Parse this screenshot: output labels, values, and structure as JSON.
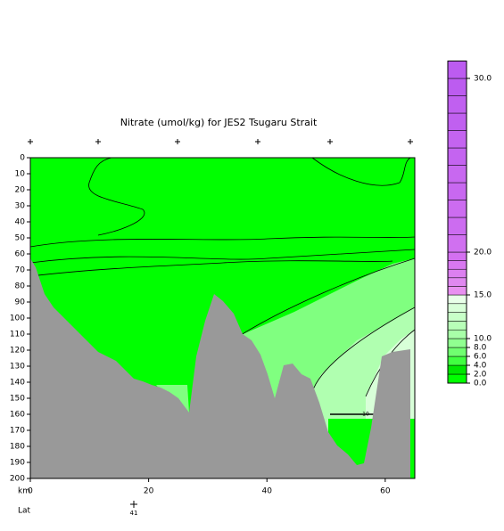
{
  "chart_data": {
    "type": "section",
    "title": "Nitrate (umol/kg) for JES2 Tsugaru Strait",
    "xlabel": "km",
    "lat_label": "Lat",
    "lat_tick": "41",
    "xlim": [
      0,
      65
    ],
    "xticks": [
      0,
      20,
      40,
      60
    ],
    "ylim": [
      0,
      200
    ],
    "yticks": [
      0,
      10,
      20,
      30,
      40,
      50,
      60,
      70,
      80,
      90,
      100,
      110,
      120,
      130,
      140,
      150,
      160,
      170,
      180,
      190,
      200
    ],
    "colorbar": {
      "bounds": [
        0,
        2,
        4,
        6,
        8,
        10,
        11,
        12,
        13,
        14,
        15,
        16,
        17,
        18,
        19,
        20,
        21,
        22,
        23,
        24,
        25,
        26,
        27,
        28,
        29,
        30,
        31
      ],
      "colors": [
        "#00ff00",
        "#00e600",
        "#40ff40",
        "#70ff70",
        "#90ff90",
        "#a8ffa8",
        "#b8ffb8",
        "#c8ffc8",
        "#d8ffd8",
        "#e8ffe8",
        "#e890f0",
        "#e088f0",
        "#dc80f0",
        "#d878f0",
        "#d470f0",
        "#d070f0",
        "#cc6cf0",
        "#cc6cf0",
        "#c868f0",
        "#c868f0",
        "#c464f0",
        "#c464f0",
        "#c060f0",
        "#c060f0",
        "#bc5cf0",
        "#bc5cf0"
      ],
      "ticks": [
        {
          "value": 0,
          "label": "0.0"
        },
        {
          "value": 2,
          "label": "2.0"
        },
        {
          "value": 4,
          "label": "4.0"
        },
        {
          "value": 6,
          "label": "6.0"
        },
        {
          "value": 8,
          "label": "8.0"
        },
        {
          "value": 10,
          "label": "10.0"
        },
        {
          "value": 15,
          "label": "15.0"
        },
        {
          "value": 20,
          "label": "20.0"
        },
        {
          "value": 30,
          "label": "30.0"
        }
      ]
    },
    "contour_label": "10"
  }
}
